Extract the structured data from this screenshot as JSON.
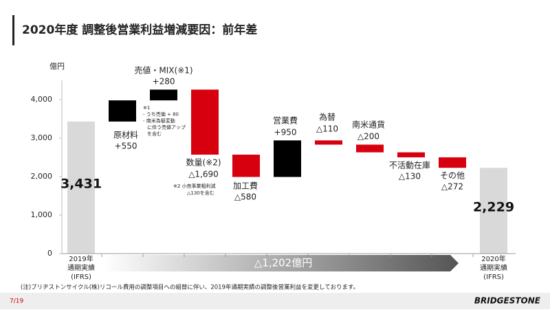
{
  "chart_data": {
    "type": "waterfall",
    "title": "2020年度 調整後営業利益増減要因：前年差",
    "y_label": "億円",
    "categories": [
      [
        "2019年",
        "通期実績",
        "(IFRS)"
      ],
      [
        "原材料"
      ],
      [
        "売値・MIX(※1)"
      ],
      [
        "数量(※2)"
      ],
      [
        "加工費"
      ],
      [
        "営業費"
      ],
      [
        "為替"
      ],
      [
        "南米通貨"
      ],
      [
        "不活動在庫"
      ],
      [
        "その他"
      ],
      [
        "2020年",
        "通期実績",
        "(IFRS)"
      ]
    ],
    "measures": [
      "total",
      "relative",
      "relative",
      "relative",
      "relative",
      "relative",
      "relative",
      "relative",
      "relative",
      "relative",
      "total"
    ],
    "values": [
      3431,
      550,
      280,
      -1690,
      -580,
      950,
      -110,
      -200,
      -130,
      -272,
      2229
    ],
    "value_labels": [
      "3,431",
      "+550",
      "+280",
      "△1,690",
      "△580",
      "+950",
      "△110",
      "△200",
      "△130",
      "△272",
      "2,229"
    ],
    "colors": {
      "total": "#d9d9d9",
      "increase": "#000000",
      "decrease": "#d7000f"
    },
    "ylim": [
      0,
      4500
    ],
    "yticks": [
      0,
      {
        "value": 1000,
        "label": "1,000"
      },
      {
        "value": 2000,
        "label": "2,000"
      },
      {
        "value": 3000,
        "label": "3,000"
      },
      {
        "value": 4000,
        "label": "4,000"
      }
    ],
    "annotations": {
      "total_change": "△1,202億円",
      "note1": [
        "※1",
        "- うち売価 + 80",
        "- 南米為替変動",
        "に伴う売値アップ",
        "を含む"
      ],
      "note2": [
        "※2 小売事業粗利減",
        "△130を含む"
      ]
    },
    "footnote": "(注)ブリヂストンサイクル(株)リコール費用の調整項目への組替に伴い、2019年通期実績の調整後営業利益を変更しております。",
    "page": "7/19",
    "logo": "BRIDGESTONE"
  }
}
